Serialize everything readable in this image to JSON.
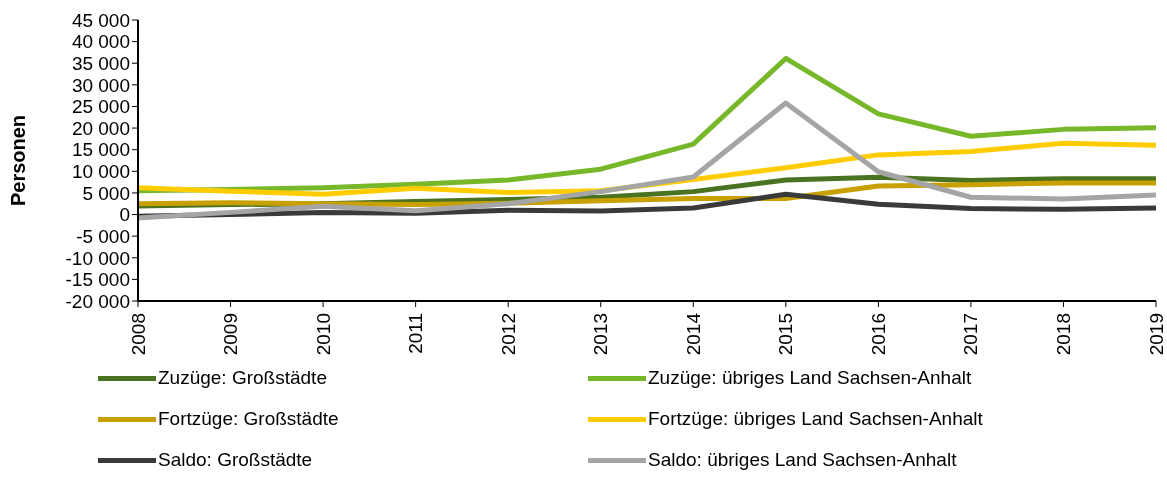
{
  "chart_data": {
    "type": "line",
    "ylabel": "Personen",
    "categories": [
      "2008",
      "2009",
      "2010",
      "2011",
      "2012",
      "2013",
      "2014",
      "2015",
      "2016",
      "2017",
      "2018",
      "2019"
    ],
    "series": [
      {
        "name": "Zuzüge: Großstädte",
        "color": "#4a7321",
        "values": [
          2000,
          2300,
          2500,
          3000,
          3500,
          4000,
          5300,
          8000,
          8600,
          7900,
          8300,
          8300
        ]
      },
      {
        "name": "Zuzüge: übriges Land Sachsen-Anhalt",
        "color": "#77b82a",
        "values": [
          5500,
          5800,
          6200,
          7000,
          8000,
          10500,
          16300,
          36100,
          23300,
          18100,
          19700,
          20100
        ]
      },
      {
        "name": "Fortzüge: Großstädte",
        "color": "#c8a000",
        "values": [
          2500,
          2700,
          2500,
          2300,
          2600,
          3200,
          3700,
          3700,
          6600,
          6900,
          7300,
          7300
        ]
      },
      {
        "name": "Fortzüge: übriges Land Sachsen-Anhalt",
        "color": "#ffcc00",
        "values": [
          6200,
          5400,
          4700,
          6100,
          5100,
          5500,
          8100,
          10800,
          13800,
          14600,
          16500,
          16000
        ]
      },
      {
        "name": "Saldo: Großstädte",
        "color": "#3a3a3a",
        "values": [
          -400,
          0,
          500,
          300,
          1000,
          800,
          1500,
          4700,
          2400,
          1400,
          1200,
          1500
        ]
      },
      {
        "name": "Saldo: übriges Land Sachsen-Anhalt",
        "color": "#a5a5a5",
        "values": [
          -800,
          500,
          1900,
          900,
          2500,
          5300,
          8700,
          25800,
          9900,
          4000,
          3600,
          4500
        ]
      }
    ],
    "ylim": [
      -20000,
      45000
    ],
    "yticks": [
      {
        "value": 45000,
        "label": "45 000"
      },
      {
        "value": 40000,
        "label": "40 000"
      },
      {
        "value": 35000,
        "label": "35 000"
      },
      {
        "value": 30000,
        "label": "30 000"
      },
      {
        "value": 25000,
        "label": "25 000"
      },
      {
        "value": 20000,
        "label": "20 000"
      },
      {
        "value": 15000,
        "label": "15 000"
      },
      {
        "value": 10000,
        "label": "10 000"
      },
      {
        "value": 5000,
        "label": "5 000"
      },
      {
        "value": 0,
        "label": "0"
      },
      {
        "value": -5000,
        "label": "-5 000"
      },
      {
        "value": -10000,
        "label": "-10 000"
      },
      {
        "value": -15000,
        "label": "-15 000"
      },
      {
        "value": -20000,
        "label": "-20 000"
      }
    ],
    "grid": false,
    "legend": "bottom",
    "marker": "none",
    "line_style": "solid"
  }
}
